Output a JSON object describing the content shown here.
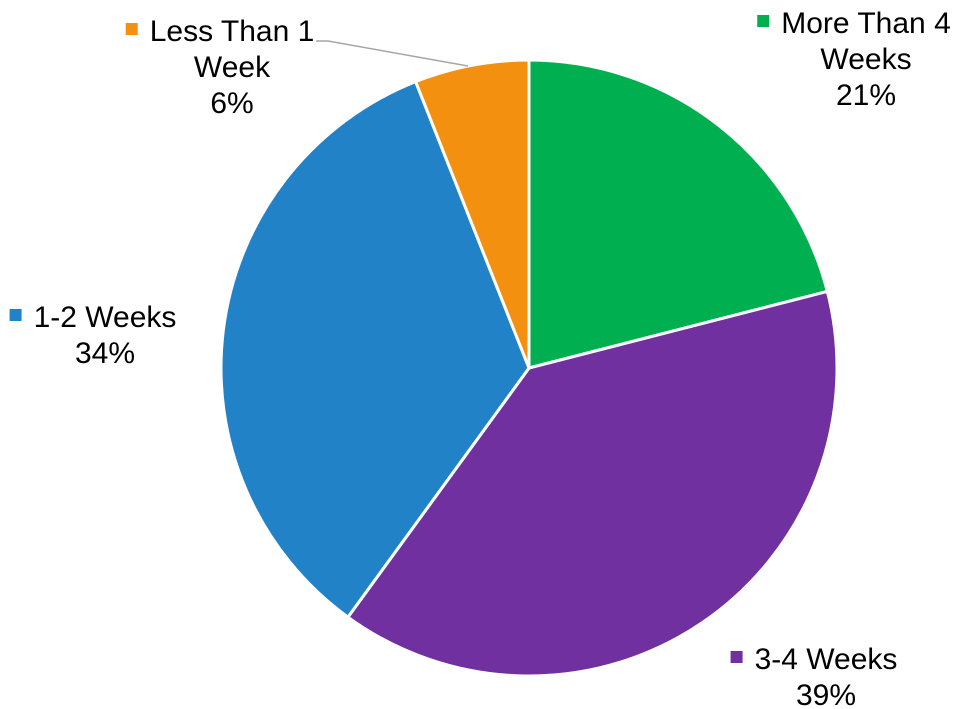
{
  "chart_data": {
    "type": "pie",
    "title": "",
    "slices": [
      {
        "category": "More Than 4 Weeks",
        "label_lines": [
          "More Than 4",
          "Weeks"
        ],
        "value": 21,
        "value_label": "21%",
        "color": "#00b050"
      },
      {
        "category": "3-4 Weeks",
        "label_lines": [
          "3-4 Weeks"
        ],
        "value": 39,
        "value_label": "39%",
        "color": "#7030a0"
      },
      {
        "category": "1-2 Weeks",
        "label_lines": [
          "1-2 Weeks"
        ],
        "value": 34,
        "value_label": "34%",
        "color": "#2282c8"
      },
      {
        "category": "Less Than 1 Week",
        "label_lines": [
          "Less Than 1",
          "Week"
        ],
        "value": 6,
        "value_label": "6%",
        "color": "#f39010"
      }
    ],
    "start_angle": "12 o'clock",
    "direction": "clockwise",
    "legend": "none (category labels on slices)"
  }
}
